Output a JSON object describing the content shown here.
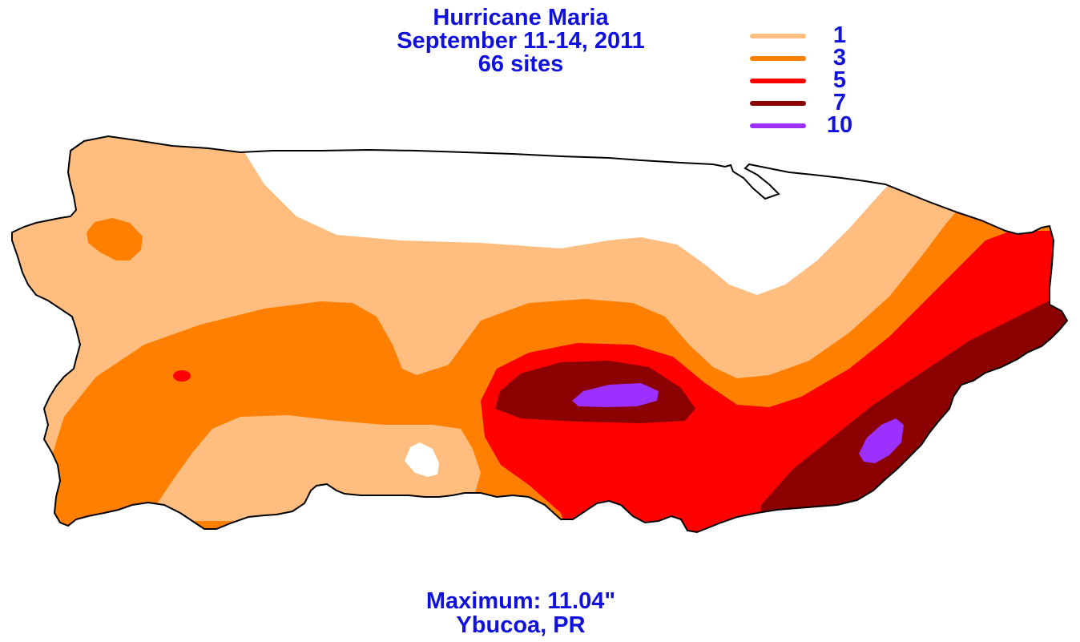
{
  "title": {
    "line1": "Hurricane Maria",
    "line2": "September 11-14, 2011",
    "line3": "66 sites"
  },
  "legend": [
    {
      "label": "1",
      "color": "#ffbe80"
    },
    {
      "label": "3",
      "color": "#ff8000"
    },
    {
      "label": "5",
      "color": "#ff0000"
    },
    {
      "label": "7",
      "color": "#8b0000"
    },
    {
      "label": "10",
      "color": "#9b30ff"
    }
  ],
  "footer": {
    "maximum": "Maximum:  11.04\"",
    "location": "Ybucoa, PR"
  },
  "colors": {
    "text": "#1111dd",
    "outline": "#000000",
    "background": "#ffffff"
  }
}
